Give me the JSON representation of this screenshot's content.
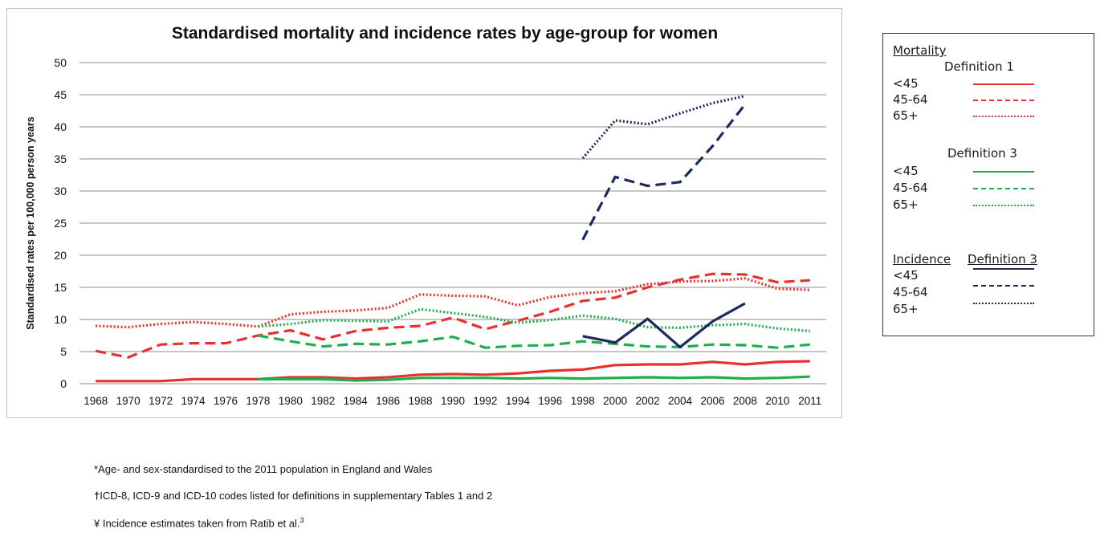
{
  "chart_data": {
    "type": "line",
    "title": "Standardised mortality and incidence rates by age-group for women",
    "xlabel": "",
    "ylabel": "Standardised rates per 100,000 person years",
    "ylim": [
      0,
      50
    ],
    "yticks": [
      0,
      5,
      10,
      15,
      20,
      25,
      30,
      35,
      40,
      45,
      50
    ],
    "x": [
      1968,
      1970,
      1972,
      1974,
      1976,
      1978,
      1980,
      1982,
      1984,
      1986,
      1988,
      1990,
      1992,
      1994,
      1996,
      1998,
      2000,
      2002,
      2004,
      2006,
      2008,
      2010,
      2011
    ],
    "grid": true,
    "series": [
      {
        "name": "Mortality Definition 1 <45",
        "color": "#e8312d",
        "style": "solid",
        "values": [
          0.4,
          0.4,
          0.4,
          0.7,
          0.7,
          0.7,
          1.0,
          1.0,
          0.8,
          1.0,
          1.4,
          1.5,
          1.4,
          1.6,
          2.0,
          2.2,
          2.9,
          3.0,
          3.0,
          3.4,
          3.0,
          3.4,
          3.5
        ]
      },
      {
        "name": "Mortality Definition 1 45-64",
        "color": "#e8312d",
        "style": "dashed",
        "values": [
          5.1,
          4.1,
          6.1,
          6.3,
          6.3,
          7.5,
          8.3,
          6.9,
          8.2,
          8.7,
          9.0,
          10.3,
          8.5,
          9.8,
          11.2,
          12.9,
          13.4,
          15.0,
          16.2,
          17.1,
          17.0,
          15.8,
          16.1
        ]
      },
      {
        "name": "Mortality Definition 1 65+",
        "color": "#e8312d",
        "style": "dotted",
        "values": [
          9.0,
          8.8,
          9.3,
          9.6,
          9.3,
          8.9,
          10.8,
          11.2,
          11.4,
          11.8,
          13.9,
          13.7,
          13.6,
          12.2,
          13.5,
          14.1,
          14.4,
          15.5,
          15.9,
          16.0,
          16.4,
          14.8,
          14.6
        ]
      },
      {
        "name": "Mortality Definition 3 <45",
        "color": "#1eae4d",
        "style": "solid",
        "values": [
          null,
          null,
          null,
          null,
          null,
          0.7,
          0.7,
          0.7,
          0.5,
          0.6,
          0.9,
          0.9,
          0.9,
          0.8,
          0.9,
          0.8,
          0.9,
          1.0,
          0.9,
          1.0,
          0.8,
          0.9,
          1.1
        ]
      },
      {
        "name": "Mortality Definition 3 45-64",
        "color": "#1eae4d",
        "style": "dashed",
        "values": [
          null,
          null,
          null,
          null,
          null,
          7.5,
          6.6,
          5.8,
          6.2,
          6.1,
          6.6,
          7.3,
          5.6,
          5.9,
          6.0,
          6.6,
          6.2,
          5.8,
          5.7,
          6.1,
          6.0,
          5.6,
          6.1
        ]
      },
      {
        "name": "Mortality Definition 3 65+",
        "color": "#1eae4d",
        "style": "dotted",
        "values": [
          null,
          null,
          null,
          null,
          null,
          8.9,
          9.3,
          9.9,
          9.8,
          9.7,
          11.6,
          11.0,
          10.4,
          9.5,
          9.9,
          10.6,
          10.1,
          8.8,
          8.7,
          9.1,
          9.3,
          8.6,
          8.2
        ]
      },
      {
        "name": "Incidence Definition 3 <45",
        "color": "#1a2a5e",
        "style": "solid",
        "values": [
          null,
          null,
          null,
          null,
          null,
          null,
          null,
          null,
          null,
          null,
          null,
          null,
          null,
          null,
          null,
          7.4,
          6.4,
          10.1,
          5.7,
          9.7,
          12.5,
          null,
          null
        ]
      },
      {
        "name": "Incidence Definition 3 45-64",
        "color": "#1a2a5e",
        "style": "dashed",
        "values": [
          null,
          null,
          null,
          null,
          null,
          null,
          null,
          null,
          null,
          null,
          null,
          null,
          null,
          null,
          null,
          22.4,
          32.2,
          30.8,
          31.4,
          37.0,
          43.5,
          null,
          null
        ]
      },
      {
        "name": "Incidence Definition 3 65+",
        "color": "#1a2a5e",
        "style": "dotted",
        "values": [
          null,
          null,
          null,
          null,
          null,
          null,
          null,
          null,
          null,
          null,
          null,
          null,
          null,
          null,
          null,
          35.1,
          41.0,
          40.4,
          42.1,
          43.7,
          44.8,
          null,
          null
        ]
      }
    ]
  },
  "legend": {
    "mortality_header": "Mortality",
    "def1_header": "Definition 1",
    "def3_header": "Definition 3",
    "incidence_header": "Incidence",
    "incidence_def": "Definition 3",
    "age_lt45": "<45",
    "age_45_64": "45-64",
    "age_65plus": "65+"
  },
  "footnotes": {
    "note1": "*Age- and sex-standardised to the 2011 population in England and Wales",
    "note2_mark": "†",
    "note2": "ICD-8, ICD-9 and ICD-10 codes listed for definitions in supplementary Tables 1 and 2",
    "note3": "¥ Incidence estimates taken from Ratib et al.",
    "note3_ref": "3"
  }
}
